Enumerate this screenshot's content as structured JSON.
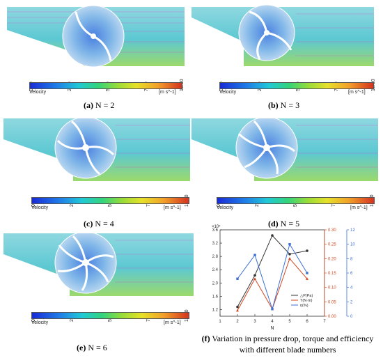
{
  "colorbar": {
    "ticks": [
      "0.00",
      "2.50",
      "5.00",
      "7.50",
      "10.00"
    ],
    "title": "Velocity",
    "unit": "[m s^-1]"
  },
  "panels": [
    {
      "id": "a",
      "letter": "(a)",
      "label": "N = 2"
    },
    {
      "id": "b",
      "letter": "(b)",
      "label": "N = 3"
    },
    {
      "id": "c",
      "letter": "(c)",
      "label": "N = 4"
    },
    {
      "id": "d",
      "letter": "(d)",
      "label": "N = 5"
    },
    {
      "id": "e",
      "letter": "(e)",
      "label": "N = 6"
    }
  ],
  "chart_caption": {
    "letter": "(f)",
    "line1": "Variation in pressure drop, torque and efficiency",
    "line2": "with different blade numbers"
  },
  "chart_data": {
    "type": "line",
    "x": [
      2,
      3,
      4,
      5,
      6
    ],
    "xlabel": "N",
    "xlim": [
      1,
      7
    ],
    "xticks": [
      "1",
      "2",
      "3",
      "4",
      "5",
      "6",
      "7"
    ],
    "left_axis": {
      "ylim": [
        1.0,
        3.6
      ],
      "ticks": [
        "1.2",
        "1.6",
        "2.0",
        "2.4",
        "2.8",
        "3.2",
        "3.6"
      ],
      "exponent": "×10⁴",
      "color": "#333333"
    },
    "right_axis_1": {
      "ylim": [
        0,
        0.3
      ],
      "ticks": [
        "0.00",
        "0.05",
        "0.10",
        "0.15",
        "0.20",
        "0.25",
        "0.30"
      ],
      "color": "#d2461e"
    },
    "right_axis_2": {
      "ylim": [
        0,
        12
      ],
      "ticks": [
        "0",
        "2",
        "4",
        "6",
        "8",
        "10",
        "12"
      ],
      "color": "#3b6fd6"
    },
    "series": [
      {
        "name": "△P(Pa)",
        "axis": "left",
        "color": "#333333",
        "values": [
          12800,
          22300,
          34300,
          28700,
          29700
        ]
      },
      {
        "name": "T(N·m)",
        "axis": "right1",
        "color": "#d2461e",
        "values": [
          0.02,
          0.13,
          0.025,
          0.2,
          0.13
        ]
      },
      {
        "name": "η(%)",
        "axis": "right2",
        "color": "#3b6fd6",
        "values": [
          5.2,
          8.5,
          1.0,
          10.0,
          6.0
        ]
      }
    ],
    "legend_position": "lower-right"
  }
}
